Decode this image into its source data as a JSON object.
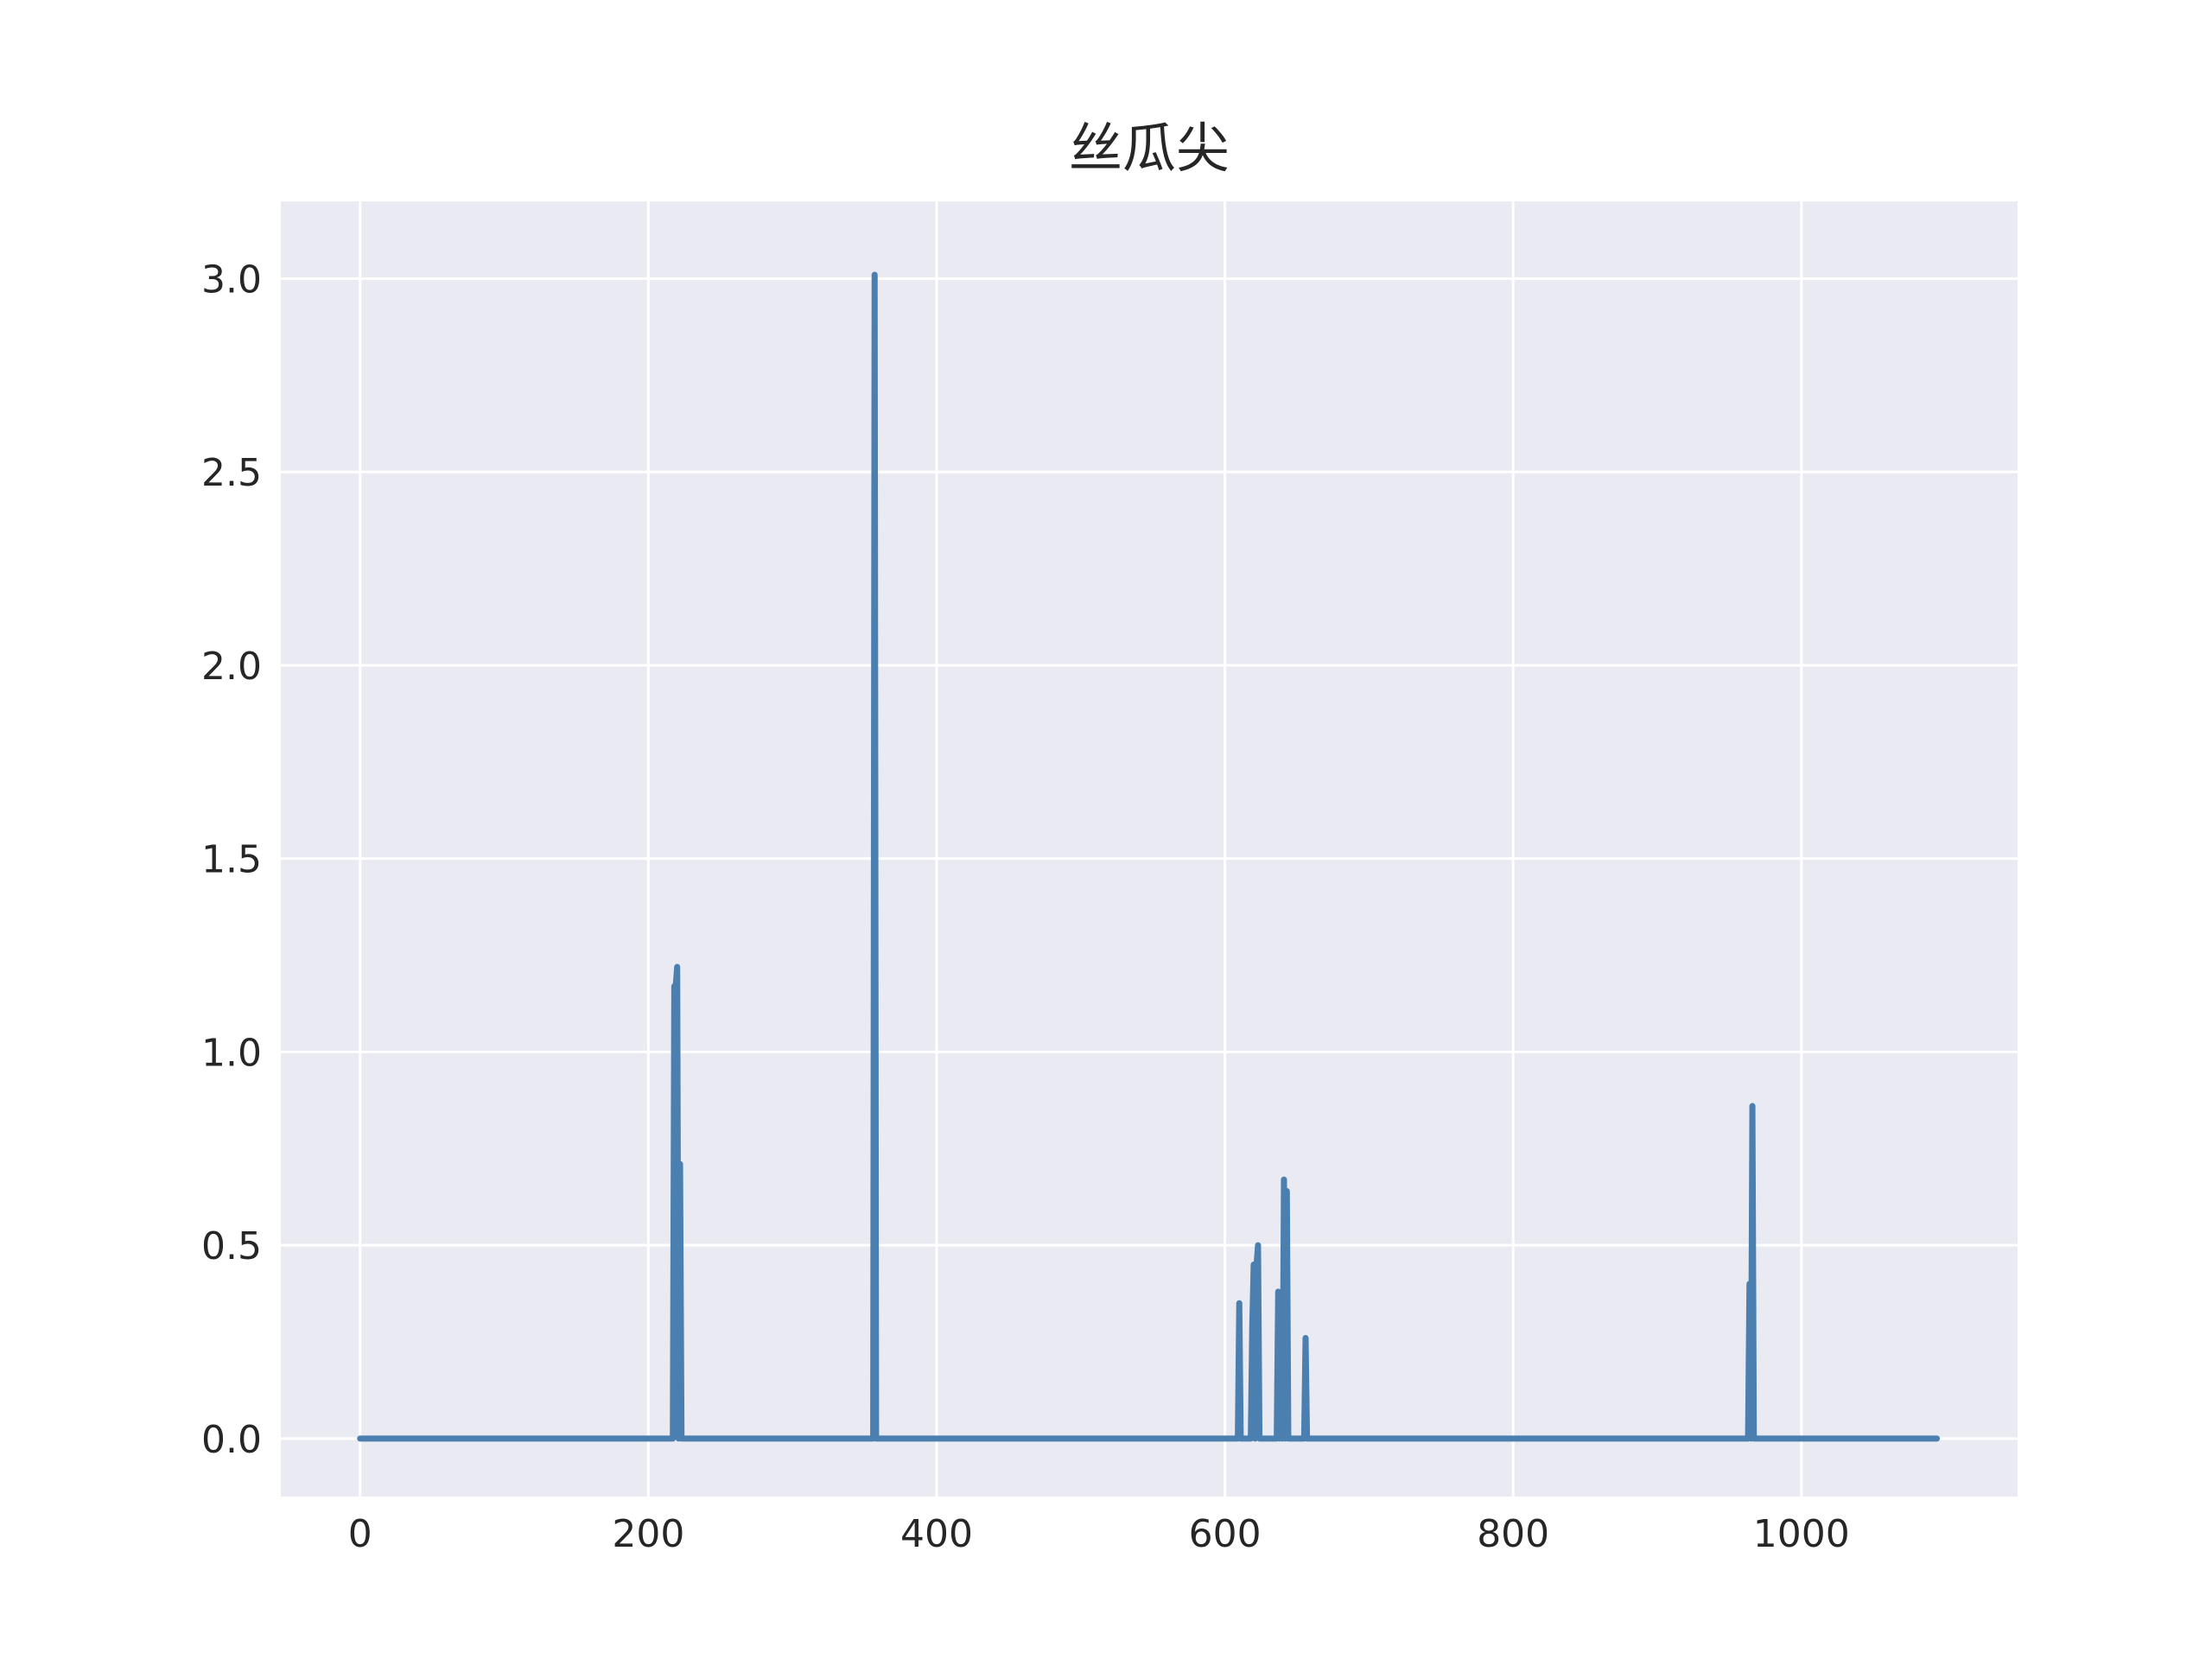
{
  "chart_data": {
    "type": "line",
    "title": "丝瓜尖",
    "xlabel": "",
    "ylabel": "",
    "xlim": [
      -55,
      1150
    ],
    "ylim": [
      -0.15,
      3.2
    ],
    "xticks": [
      0,
      200,
      400,
      600,
      800,
      1000
    ],
    "xtick_labels": [
      "0",
      "200",
      "400",
      "600",
      "800",
      "1000"
    ],
    "yticks": [
      0.0,
      0.5,
      1.0,
      1.5,
      2.0,
      2.5,
      3.0
    ],
    "ytick_labels": [
      "0.0",
      "0.5",
      "1.0",
      "1.5",
      "2.0",
      "2.5",
      "3.0"
    ],
    "grid": true,
    "legend": "none",
    "style": {
      "background": "#EAEAF2",
      "grid_color": "#FFFFFF",
      "line_color": "#4A7FB0"
    },
    "series": [
      {
        "x": [
          0,
          217,
          218,
          219,
          220,
          221,
          222,
          223,
          224,
          356,
          357,
          358,
          359,
          609,
          610,
          611,
          618,
          619,
          620,
          621,
          622,
          623,
          624,
          625,
          626,
          636,
          637,
          638,
          639,
          640,
          641,
          642,
          643,
          644,
          645,
          646,
          647,
          648,
          655,
          656,
          657,
          658,
          963,
          964,
          965,
          966,
          967,
          968,
          969,
          1094
        ],
        "y": [
          0,
          0,
          1.17,
          1.17,
          1.22,
          0.0,
          0.71,
          0.0,
          0,
          0,
          3.01,
          0,
          0,
          0,
          0.35,
          0,
          0,
          0.29,
          0.45,
          0,
          0.45,
          0.5,
          0,
          0,
          0,
          0,
          0.38,
          0,
          0.32,
          0,
          0.67,
          0,
          0.64,
          0,
          0,
          0,
          0,
          0,
          0,
          0.26,
          0,
          0,
          0,
          0.4,
          0,
          0.86,
          0,
          0,
          0,
          0
        ]
      }
    ]
  }
}
